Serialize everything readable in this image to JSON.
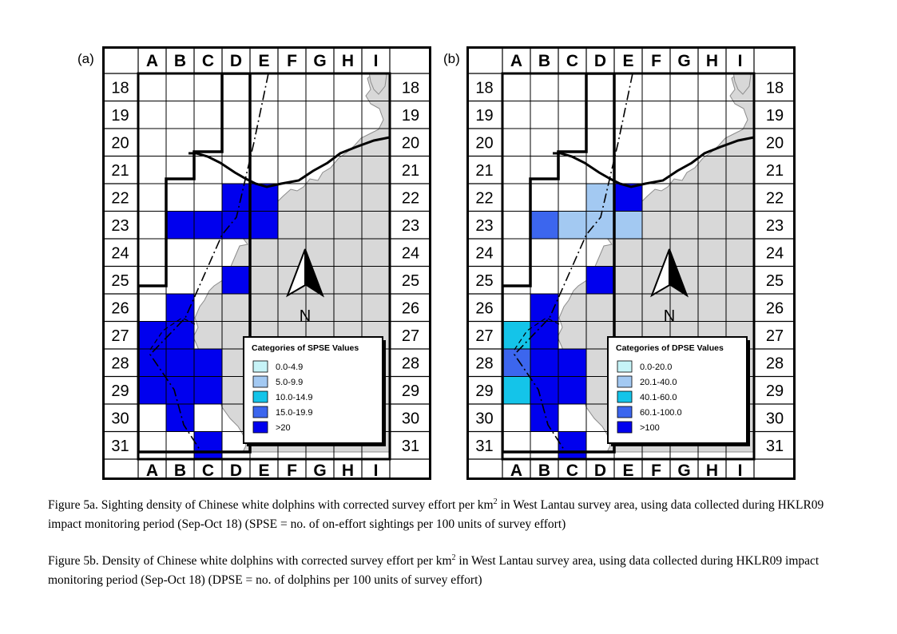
{
  "figure": {
    "columns": [
      "A",
      "B",
      "C",
      "D",
      "E",
      "F",
      "G",
      "H",
      "I"
    ],
    "rows": [
      "18",
      "19",
      "20",
      "21",
      "22",
      "23",
      "24",
      "25",
      "26",
      "27",
      "28",
      "29",
      "30",
      "31"
    ],
    "north_label": "N",
    "colors": {
      "land": "#d8d8d8",
      "cat1": "#c6f3f7",
      "cat2": "#a3c9f2",
      "cat3": "#14c4e9",
      "cat4": "#3c66ee",
      "cat5": "#0000ee"
    }
  },
  "panels": [
    {
      "tag": "(a)",
      "legend_title": "Categories of SPSE Values",
      "legend_items": [
        {
          "label": "0.0-4.9",
          "color": "#c6f3f7"
        },
        {
          "label": "5.0-9.9",
          "color": "#a3c9f2"
        },
        {
          "label": "10.0-14.9",
          "color": "#14c4e9"
        },
        {
          "label": "15.0-19.9",
          "color": "#3c66ee"
        },
        {
          "label": ">20",
          "color": "#0000ee"
        }
      ],
      "cells": [
        {
          "grid": "D22",
          "category": 5
        },
        {
          "grid": "E22",
          "category": 5
        },
        {
          "grid": "B23",
          "category": 5
        },
        {
          "grid": "C23",
          "category": 5
        },
        {
          "grid": "D23",
          "category": 5
        },
        {
          "grid": "E23",
          "category": 5
        },
        {
          "grid": "D25",
          "category": 5
        },
        {
          "grid": "B26",
          "category": 5
        },
        {
          "grid": "A27",
          "category": 5
        },
        {
          "grid": "B27",
          "category": 5
        },
        {
          "grid": "A28",
          "category": 5
        },
        {
          "grid": "B28",
          "category": 5
        },
        {
          "grid": "C28",
          "category": 5
        },
        {
          "grid": "A29",
          "category": 5
        },
        {
          "grid": "B29",
          "category": 5
        },
        {
          "grid": "C29",
          "category": 5
        },
        {
          "grid": "B30",
          "category": 5
        },
        {
          "grid": "C31",
          "category": 5
        }
      ]
    },
    {
      "tag": "(b)",
      "legend_title": "Categories of DPSE Values",
      "legend_items": [
        {
          "label": "0.0-20.0",
          "color": "#c6f3f7"
        },
        {
          "label": "20.1-40.0",
          "color": "#a3c9f2"
        },
        {
          "label": "40.1-60.0",
          "color": "#14c4e9"
        },
        {
          "label": "60.1-100.0",
          "color": "#3c66ee"
        },
        {
          "label": ">100",
          "color": "#0000ee"
        }
      ],
      "cells": [
        {
          "grid": "D22",
          "category": 2
        },
        {
          "grid": "E22",
          "category": 5
        },
        {
          "grid": "B23",
          "category": 4
        },
        {
          "grid": "C23",
          "category": 2
        },
        {
          "grid": "D23",
          "category": 2
        },
        {
          "grid": "E23",
          "category": 2
        },
        {
          "grid": "D25",
          "category": 5
        },
        {
          "grid": "B26",
          "category": 5
        },
        {
          "grid": "A27",
          "category": 3
        },
        {
          "grid": "B27",
          "category": 5
        },
        {
          "grid": "A28",
          "category": 4
        },
        {
          "grid": "B28",
          "category": 5
        },
        {
          "grid": "C28",
          "category": 5
        },
        {
          "grid": "A29",
          "category": 3
        },
        {
          "grid": "B29",
          "category": 5
        },
        {
          "grid": "C29",
          "category": 5
        },
        {
          "grid": "B30",
          "category": 5
        },
        {
          "grid": "C31",
          "category": 5
        }
      ]
    }
  ],
  "captions": {
    "a": {
      "start": "Figure 5a.  Sighting density of Chinese white dolphins with corrected survey effort per km",
      "sup": "2",
      "end": " in West Lantau survey area, using data collected during HKLR09 impact monitoring period (Sep-Oct 18) (SPSE = no. of on-effort sightings per 100 units of survey effort)"
    },
    "b": {
      "start": "Figure 5b.  Density of Chinese white dolphins with corrected survey effort per km",
      "sup": "2",
      "end": " in West Lantau survey area, using data collected during HKLR09 impact monitoring period (Sep-Oct 18) (DPSE = no. of dolphins per 100 units of survey effort)"
    }
  }
}
